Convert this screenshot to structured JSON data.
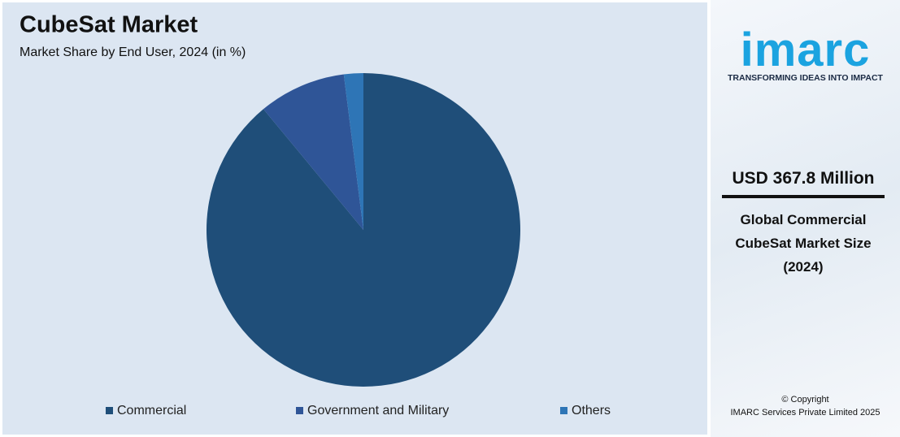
{
  "chart_data": {
    "type": "pie",
    "title": "CubeSat Market",
    "subtitle": "Market Share by End User, 2024 (in %)",
    "categories": [
      "Commercial",
      "Government and Military",
      "Others"
    ],
    "values": [
      89,
      9,
      2
    ],
    "colors": [
      "#1f4e79",
      "#2f5597",
      "#2e75b6"
    ]
  },
  "sidebar": {
    "logo": "imarc",
    "tagline": "TRANSFORMING IDEAS INTO IMPACT",
    "headline": "USD 367.8 Million",
    "description": "Global Commercial CubeSat Market Size (2024)",
    "copyright": "© Copyright",
    "company": "IMARC Services Private Limited 2025"
  }
}
